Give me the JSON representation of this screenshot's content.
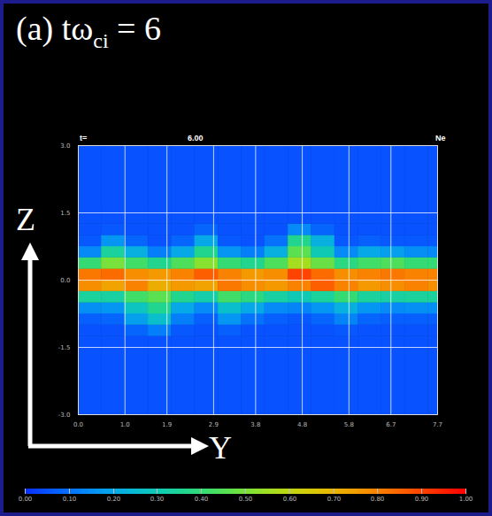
{
  "chart_data": {
    "type": "heatmap",
    "title": [
      {
        "text": "(a) tω"
      },
      {
        "text": "ci",
        "sub": true
      },
      {
        "text": " = 6"
      }
    ],
    "xlabel": "Y",
    "ylabel": "Z",
    "annotations": [
      "t=",
      "6.00",
      "Ne"
    ],
    "xlim": [
      0,
      7.7
    ],
    "xticks": [
      {
        "value": 0,
        "label": "0.0"
      },
      {
        "value": 1,
        "label": "1.0"
      },
      1.9,
      2.9,
      3.8,
      4.8,
      5.8,
      6.7,
      7.7
    ],
    "ylim": [
      -3,
      3
    ],
    "yticks": [
      {
        "value": -3,
        "label": "-3.0"
      },
      -1.5,
      {
        "value": 0,
        "label": "0.0"
      },
      1.5,
      {
        "value": 3,
        "label": "3.0"
      }
    ],
    "grid": true,
    "cells": {
      "x_edges": [
        0,
        0.5,
        1,
        1.5,
        2,
        2.5,
        3,
        3.5,
        4,
        4.5,
        5,
        5.5,
        6,
        6.5,
        7,
        7.5,
        7.7
      ],
      "y_edges": [
        -3,
        -1.5,
        -1.25,
        -1,
        -0.75,
        -0.5,
        -0.25,
        0,
        0.25,
        0.5,
        0.75,
        1,
        1.25,
        1.5,
        3
      ],
      "values": [
        [
          0.05,
          0.05,
          0.05,
          0.05,
          0.05,
          0.05,
          0.05,
          0.05,
          0.05,
          0.05,
          0.05,
          0.05,
          0.05,
          0.05,
          0.05,
          0.05
        ],
        [
          0.05,
          0.05,
          0.05,
          0.05,
          0.05,
          0.05,
          0.05,
          0.05,
          0.05,
          0.05,
          0.05,
          0.05,
          0.05,
          0.05,
          0.05,
          0.05
        ],
        [
          0.05,
          0.05,
          0.08,
          0.12,
          0.06,
          0.05,
          0.07,
          0.05,
          0.05,
          0.05,
          0.05,
          0.06,
          0.05,
          0.05,
          0.05,
          0.05
        ],
        [
          0.07,
          0.08,
          0.18,
          0.26,
          0.12,
          0.07,
          0.16,
          0.1,
          0.07,
          0.06,
          0.08,
          0.13,
          0.08,
          0.07,
          0.07,
          0.07
        ],
        [
          0.15,
          0.16,
          0.28,
          0.36,
          0.2,
          0.14,
          0.26,
          0.2,
          0.14,
          0.13,
          0.16,
          0.22,
          0.16,
          0.14,
          0.15,
          0.15
        ],
        [
          0.34,
          0.33,
          0.42,
          0.46,
          0.36,
          0.32,
          0.42,
          0.38,
          0.33,
          0.3,
          0.34,
          0.4,
          0.34,
          0.33,
          0.34,
          0.34
        ],
        [
          0.78,
          0.74,
          0.8,
          0.72,
          0.76,
          0.74,
          0.82,
          0.78,
          0.76,
          0.8,
          0.86,
          0.8,
          0.76,
          0.78,
          0.8,
          0.78
        ],
        [
          0.82,
          0.84,
          0.78,
          0.76,
          0.8,
          0.86,
          0.8,
          0.76,
          0.78,
          0.9,
          0.84,
          0.78,
          0.8,
          0.82,
          0.8,
          0.8
        ],
        [
          0.4,
          0.5,
          0.42,
          0.36,
          0.44,
          0.52,
          0.4,
          0.36,
          0.44,
          0.56,
          0.48,
          0.38,
          0.42,
          0.44,
          0.4,
          0.4
        ],
        [
          0.14,
          0.34,
          0.22,
          0.12,
          0.2,
          0.36,
          0.16,
          0.12,
          0.22,
          0.46,
          0.3,
          0.14,
          0.2,
          0.18,
          0.15,
          0.14
        ],
        [
          0.06,
          0.16,
          0.08,
          0.05,
          0.08,
          0.2,
          0.06,
          0.05,
          0.1,
          0.36,
          0.22,
          0.06,
          0.07,
          0.06,
          0.06,
          0.06
        ],
        [
          0.05,
          0.06,
          0.05,
          0.05,
          0.05,
          0.08,
          0.05,
          0.05,
          0.05,
          0.14,
          0.08,
          0.05,
          0.05,
          0.05,
          0.05,
          0.05
        ],
        [
          0.05,
          0.05,
          0.05,
          0.05,
          0.05,
          0.05,
          0.05,
          0.05,
          0.05,
          0.05,
          0.05,
          0.05,
          0.05,
          0.05,
          0.05,
          0.05
        ],
        [
          0.05,
          0.05,
          0.05,
          0.05,
          0.05,
          0.05,
          0.05,
          0.05,
          0.05,
          0.05,
          0.05,
          0.05,
          0.05,
          0.05,
          0.05,
          0.05
        ]
      ]
    },
    "colorbar": {
      "range": [
        0,
        1
      ],
      "ticks": [
        {
          "value": 0,
          "label": "0.00"
        },
        {
          "value": 0.1,
          "label": "0.10"
        },
        {
          "value": 0.2,
          "label": "0.20"
        },
        {
          "value": 0.3,
          "label": "0.30"
        },
        {
          "value": 0.4,
          "label": "0.40"
        },
        {
          "value": 0.5,
          "label": "0.50"
        },
        {
          "value": 0.6,
          "label": "0.60"
        },
        {
          "value": 0.7,
          "label": "0.70"
        },
        {
          "value": 0.8,
          "label": "0.80"
        },
        {
          "value": 0.9,
          "label": "0.90"
        },
        {
          "value": 1,
          "label": "1.00"
        }
      ]
    }
  }
}
